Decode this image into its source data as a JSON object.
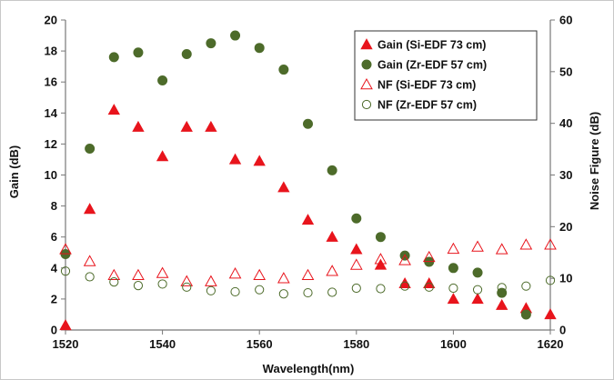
{
  "chart_data": {
    "type": "scatter",
    "xlabel": "Wavelength(nm)",
    "ylabel": "Gain (dB)",
    "y2label": "Noise Figure (dB)",
    "xlim": [
      1520,
      1620
    ],
    "ylim": [
      0,
      20
    ],
    "y2lim": [
      0,
      60
    ],
    "xticks": [
      "1520",
      "1540",
      "1560",
      "1580",
      "1600",
      "1620"
    ],
    "yticks": [
      "0",
      "2",
      "4",
      "6",
      "8",
      "10",
      "12",
      "14",
      "16",
      "18",
      "20"
    ],
    "y2ticks": [
      "0",
      "10",
      "20",
      "30",
      "40",
      "50",
      "60"
    ],
    "grid": false,
    "legend_position": "top-right",
    "series": [
      {
        "name": "Gain (Si-EDF 73 cm)",
        "axis": "left",
        "marker": "filled-triangle",
        "color": "#e8141c",
        "x": [
          1520,
          1525,
          1530,
          1535,
          1540,
          1545,
          1550,
          1555,
          1560,
          1565,
          1570,
          1575,
          1580,
          1585,
          1590,
          1595,
          1600,
          1605,
          1610,
          1615,
          1620
        ],
        "y": [
          0.3,
          7.8,
          14.2,
          13.1,
          11.2,
          13.1,
          13.1,
          11.0,
          10.9,
          9.2,
          7.1,
          6.0,
          5.2,
          4.2,
          3.0,
          3.0,
          2.0,
          2.0,
          1.6,
          1.4,
          1.0
        ]
      },
      {
        "name": "Gain (Zr-EDF 57 cm)",
        "axis": "left",
        "marker": "filled-circle",
        "color": "#4d6b2a",
        "x": [
          1520,
          1525,
          1530,
          1535,
          1540,
          1545,
          1550,
          1555,
          1560,
          1565,
          1570,
          1575,
          1580,
          1585,
          1590,
          1595,
          1600,
          1605,
          1610,
          1615
        ],
        "y": [
          4.9,
          11.7,
          17.6,
          17.9,
          16.1,
          17.8,
          18.5,
          19.0,
          18.2,
          16.8,
          13.3,
          10.3,
          7.2,
          6.0,
          4.8,
          4.4,
          4.0,
          3.7,
          2.4,
          1.0
        ]
      },
      {
        "name": "NF (Si-EDF 73 cm)",
        "axis": "right",
        "marker": "open-triangle",
        "color": "#e8141c",
        "x": [
          1520,
          1525,
          1530,
          1535,
          1540,
          1545,
          1550,
          1555,
          1560,
          1565,
          1570,
          1575,
          1580,
          1585,
          1590,
          1595,
          1600,
          1605,
          1610,
          1615,
          1620
        ],
        "y": [
          15.6,
          13.3,
          10.6,
          10.6,
          11.0,
          9.4,
          9.4,
          10.9,
          10.6,
          10.0,
          10.6,
          11.4,
          12.6,
          13.7,
          13.5,
          14.1,
          15.7,
          16.1,
          15.6,
          16.5,
          16.5
        ]
      },
      {
        "name": "NF (Zr-EDF 57 cm)",
        "axis": "right",
        "marker": "open-circle",
        "color": "#4d6b2a",
        "x": [
          1520,
          1525,
          1530,
          1535,
          1540,
          1545,
          1550,
          1555,
          1560,
          1565,
          1570,
          1575,
          1580,
          1585,
          1590,
          1595,
          1600,
          1605,
          1610,
          1615,
          1620
        ],
        "y": [
          11.4,
          10.3,
          9.3,
          8.6,
          8.9,
          8.3,
          7.6,
          7.4,
          7.8,
          7.0,
          7.2,
          7.3,
          8.1,
          8.0,
          8.5,
          8.3,
          8.1,
          7.8,
          8.2,
          8.5,
          9.6
        ]
      }
    ]
  }
}
